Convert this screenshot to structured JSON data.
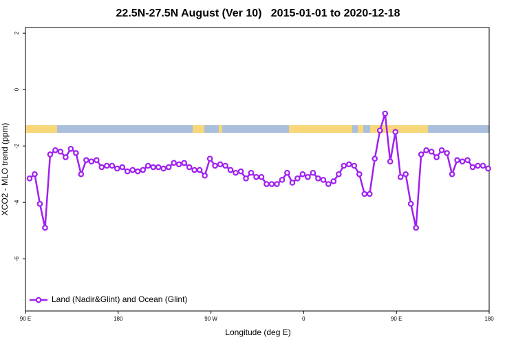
{
  "chart_data": {
    "type": "line",
    "title": "22.5N-27.5N August (Ver 10)   2015-01-01 to 2020-12-18",
    "xlabel": "Longitude (deg E)",
    "ylabel": "XCO2 - MLO trend (ppm)",
    "x": [
      94,
      99,
      104,
      109,
      114,
      119,
      124,
      129,
      134,
      139,
      144,
      149,
      154,
      159,
      164,
      169,
      174,
      179,
      184,
      189,
      194,
      199,
      204,
      209,
      214,
      219,
      224,
      229,
      234,
      239,
      244,
      249,
      254,
      259,
      264,
      269,
      274,
      279,
      284,
      289,
      294,
      299,
      304,
      309,
      314,
      319,
      324,
      329,
      334,
      339,
      344,
      349,
      354,
      359,
      364,
      369,
      374,
      379,
      384,
      389,
      394,
      399,
      404,
      409,
      414,
      419,
      424,
      429,
      434,
      439,
      444,
      449,
      454,
      459,
      464,
      469,
      474,
      479,
      484,
      489,
      494,
      499,
      504,
      509,
      514,
      519,
      524,
      529,
      534,
      539
    ],
    "series": [
      {
        "name": "Land (Nadir&Glint) and Ocean (Glint)",
        "color": "#a020f0",
        "values": [
          -3.15,
          -3.0,
          -4.05,
          -4.9,
          -2.3,
          -2.15,
          -2.2,
          -2.4,
          -2.1,
          -2.25,
          -3.0,
          -2.5,
          -2.55,
          -2.5,
          -2.75,
          -2.7,
          -2.7,
          -2.8,
          -2.75,
          -2.9,
          -2.85,
          -2.9,
          -2.85,
          -2.7,
          -2.75,
          -2.75,
          -2.8,
          -2.75,
          -2.6,
          -2.65,
          -2.6,
          -2.75,
          -2.85,
          -2.85,
          -3.05,
          -2.45,
          -2.7,
          -2.65,
          -2.7,
          -2.85,
          -2.95,
          -2.9,
          -3.15,
          -2.95,
          -3.1,
          -3.1,
          -3.35,
          -3.35,
          -3.35,
          -3.2,
          -2.95,
          -3.3,
          -3.15,
          -3.0,
          -3.1,
          -2.95,
          -3.15,
          -3.2,
          -3.35,
          -3.25,
          -3.0,
          -2.7,
          -2.65,
          -2.7,
          -3.0,
          -3.7,
          -3.7,
          -2.45,
          -1.45,
          -0.85,
          -2.55,
          -1.5,
          -3.1,
          -3.0,
          -4.05,
          -4.9,
          -2.3,
          -2.15,
          -2.2,
          -2.4,
          -2.15,
          -2.25,
          -3.0,
          -2.5,
          -2.55,
          -2.5,
          -2.75,
          -2.7,
          -2.7,
          -2.8
        ]
      }
    ],
    "xlim": [
      90,
      540
    ],
    "xticks": [
      {
        "value": 90,
        "label": "90 E"
      },
      {
        "value": 180,
        "label": "180"
      },
      {
        "value": 270,
        "label": "90 W"
      },
      {
        "value": 360,
        "label": "0"
      },
      {
        "value": 450,
        "label": "90 E"
      },
      {
        "value": 540,
        "label": "180"
      }
    ],
    "ylim": [
      -7.85,
      2.2
    ],
    "yticks": [
      -6,
      -4,
      -2,
      0,
      2
    ],
    "legend": "bottom-left"
  }
}
